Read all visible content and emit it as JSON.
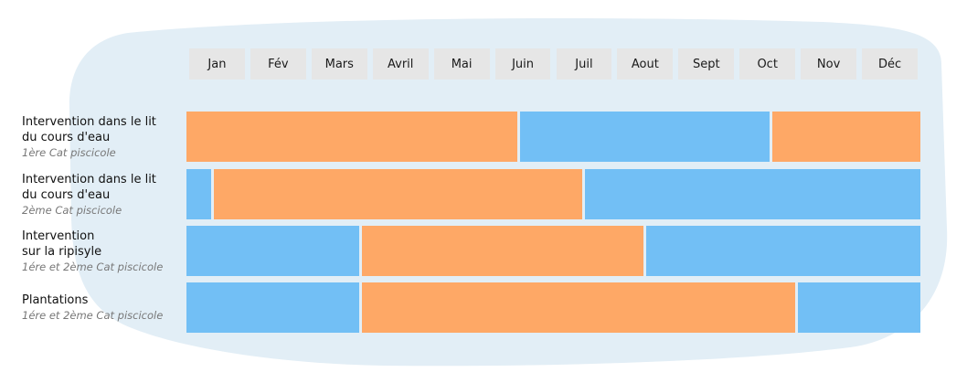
{
  "colors": {
    "orange": "#fea866",
    "blue": "#72bff5",
    "month_box": "#e6e6e6",
    "background_blob": "#e2eef6"
  },
  "chart_data": {
    "type": "gantt",
    "categories": [
      "Jan",
      "Fév",
      "Mars",
      "Avril",
      "Mai",
      "Juin",
      "Juil",
      "Aout",
      "Sept",
      "Oct",
      "Nov",
      "Déc"
    ],
    "rows": [
      {
        "label_lines": [
          "Intervention dans le lit",
          "du cours d'eau"
        ],
        "sublabel": "1ère Cat piscicole",
        "segments": [
          {
            "start": 0,
            "end": 5.43,
            "color": "orange"
          },
          {
            "start": 5.43,
            "end": 9.56,
            "color": "blue"
          },
          {
            "start": 9.56,
            "end": 12,
            "color": "orange"
          }
        ]
      },
      {
        "label_lines": [
          "Intervention dans le lit",
          "du cours d'eau"
        ],
        "sublabel": "2ème Cat piscicole",
        "segments": [
          {
            "start": 0,
            "end": 0.43,
            "color": "blue"
          },
          {
            "start": 0.43,
            "end": 6.5,
            "color": "orange"
          },
          {
            "start": 6.5,
            "end": 12,
            "color": "blue"
          }
        ]
      },
      {
        "label_lines": [
          "Intervention",
          "sur la ripisyle"
        ],
        "sublabel": "1ére et 2ème Cat piscicole",
        "segments": [
          {
            "start": 0,
            "end": 2.85,
            "color": "blue"
          },
          {
            "start": 2.85,
            "end": 7.5,
            "color": "orange"
          },
          {
            "start": 7.5,
            "end": 12,
            "color": "blue"
          }
        ]
      },
      {
        "label_lines": [
          "Plantations"
        ],
        "sublabel": "1ére et 2ème Cat piscicole",
        "segments": [
          {
            "start": 0,
            "end": 2.85,
            "color": "blue"
          },
          {
            "start": 2.85,
            "end": 9.98,
            "color": "orange"
          },
          {
            "start": 9.98,
            "end": 12,
            "color": "blue"
          }
        ]
      }
    ]
  }
}
